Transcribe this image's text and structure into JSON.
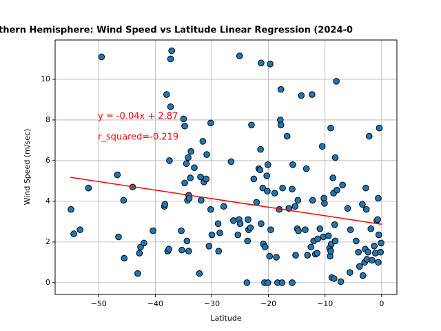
{
  "chart_data": {
    "type": "scatter",
    "title": "thern Hemisphere: Wind Speed vs Latitude Linear Regression (2024-0",
    "x_label": "Latitude",
    "y_label": "Wind Speed (m/sec)",
    "xlim": [
      -57.7,
      2.7
    ],
    "ylim": [
      -0.58,
      11.93
    ],
    "xticks": [
      {
        "value": -50,
        "label": "−50"
      },
      {
        "value": -40,
        "label": "−40"
      },
      {
        "value": -30,
        "label": "−30"
      },
      {
        "value": -20,
        "label": "−20"
      },
      {
        "value": -10,
        "label": "−10"
      },
      0
    ],
    "yticks": [
      0,
      2,
      4,
      6,
      8,
      10
    ],
    "grid": true,
    "series": [
      {
        "color": "#1f77b4",
        "x": [
          -54.9,
          -54.4,
          -53.3,
          -51.8,
          -49.5,
          -46.7,
          -46.5,
          -45.6,
          -45.5,
          -44,
          -43.1,
          -42.8,
          -42.6,
          -42,
          -40.4,
          -38.4,
          -38.3,
          -38,
          -37.8,
          -37.6,
          -37.5,
          -37.3,
          -37.3,
          -37.1,
          -35.4,
          -35.3,
          -35,
          -34.8,
          -34.8,
          -34.5,
          -34.4,
          -34.3,
          -34.2,
          -34.1,
          -34,
          -33.8,
          -33.7,
          -33.1,
          -34.1,
          -32.2,
          -32,
          -31.9,
          -31.6,
          -31.4,
          -31,
          -30.9,
          -30.5,
          -30.2,
          -30.2,
          -30,
          -28.9,
          -28.8,
          -28.6,
          -27.9,
          -26.6,
          -26.2,
          -25.4,
          -25.2,
          -25.1,
          -25,
          -23.8,
          -23.7,
          -23.6,
          -23.5,
          -23.2,
          -23,
          -22.6,
          -22.1,
          -21.7,
          -21.5,
          -21.4,
          -21.3,
          -21.3,
          -21,
          -20.9,
          -20.7,
          -20.6,
          -20.3,
          -20.2,
          -20.1,
          -20.1,
          -19.8,
          -19.7,
          -19.6,
          -18.9,
          -18.6,
          -18.4,
          -18.1,
          -17.9,
          -17.8,
          -17.8,
          -17.6,
          -17.5,
          -16.7,
          -16.4,
          -15.8,
          -15.8,
          -15.7,
          -15.3,
          -15.2,
          -14.9,
          -14.8,
          -14.7,
          -14.2,
          -13.5,
          -13.3,
          -13.1,
          -12.5,
          -12.3,
          -12.2,
          -12,
          -11.7,
          -11.4,
          -11.3,
          -10.9,
          -10.5,
          -10.3,
          -10.2,
          -10.1,
          -9.4,
          -9.2,
          -9.1,
          -9,
          -9,
          -8.9,
          -8.8,
          -8.6,
          -8.5,
          -8.4,
          -8.3,
          -8.2,
          -8.2,
          -8,
          -7.9,
          -7.2,
          -6.9,
          -6,
          -5.6,
          -5.5,
          -4.5,
          -4.1,
          -3.9,
          -3.4,
          -3.3,
          -3,
          -2.9,
          -2.8,
          -2.7,
          -2.6,
          -2.4,
          -2.2,
          -1.9,
          -1.7,
          -1.3,
          -1.1,
          -0.85,
          -0.7,
          -0.6,
          -0.6,
          -0.5,
          -0.4,
          -0.2,
          -0.1
        ],
        "values": [
          3.6,
          2.4,
          2.6,
          4.65,
          11.1,
          5.3,
          2.25,
          4.05,
          1.2,
          4.7,
          0.45,
          1.45,
          1.75,
          1.95,
          2.55,
          3.75,
          3.85,
          9.25,
          1.55,
          1.65,
          6,
          8.65,
          11,
          11.4,
          2.55,
          1.6,
          8.05,
          7.7,
          4.9,
          5.85,
          2.05,
          4.05,
          6.15,
          4.3,
          4.15,
          5.15,
          6.45,
          5.65,
          1.55,
          0.45,
          5.2,
          4.05,
          6.95,
          4.95,
          5.1,
          6.3,
          1.8,
          3.6,
          7.85,
          2.35,
          2.9,
          1.55,
          2.45,
          3.75,
          5.95,
          3.05,
          2.35,
          3.1,
          11.15,
          2.9,
          0,
          2.05,
          3.1,
          2.6,
          2.7,
          7.75,
          5.1,
          3.95,
          5.6,
          5.55,
          6.55,
          10.8,
          2.9,
          4.65,
          1.9,
          0,
          1.75,
          5.25,
          4.5,
          0,
          5.8,
          1.3,
          10.75,
          2.6,
          4.4,
          1.25,
          0,
          3.6,
          8,
          9.5,
          7.75,
          0,
          4.65,
          7.2,
          3.65,
          0,
          4.6,
          5.8,
          3.75,
          1.35,
          2.65,
          4.05,
          2.55,
          9.2,
          2.6,
          5.6,
          1.35,
          1.75,
          9.25,
          4.05,
          2.05,
          1.4,
          1.45,
          2.15,
          2.65,
          6.7,
          2.25,
          4.15,
          3.9,
          2.3,
          1.7,
          1.3,
          7.6,
          1.55,
          1.9,
          0.25,
          5.15,
          4.4,
          0.2,
          2.85,
          2.05,
          6.15,
          9.9,
          4.55,
          0.05,
          4.8,
          3.65,
          0.5,
          2.6,
          2.05,
          1.5,
          0.8,
          3.85,
          0.35,
          1,
          1.65,
          4.65,
          3.6,
          1.15,
          1.5,
          7.2,
          2.65,
          1.1,
          1.8,
          1.45,
          3.05,
          3.1,
          1,
          4.15,
          2.35,
          7.6,
          1.5,
          1.95
        ]
      }
    ],
    "regression": {
      "color": "red",
      "x": [
        -55,
        0
      ],
      "values": [
        5.18,
        2.87
      ]
    },
    "annotations": [
      {
        "text": "y = -0.04x + 2.87",
        "color": "red"
      },
      {
        "text": "r_squared=-0.219",
        "color": "red"
      }
    ]
  }
}
